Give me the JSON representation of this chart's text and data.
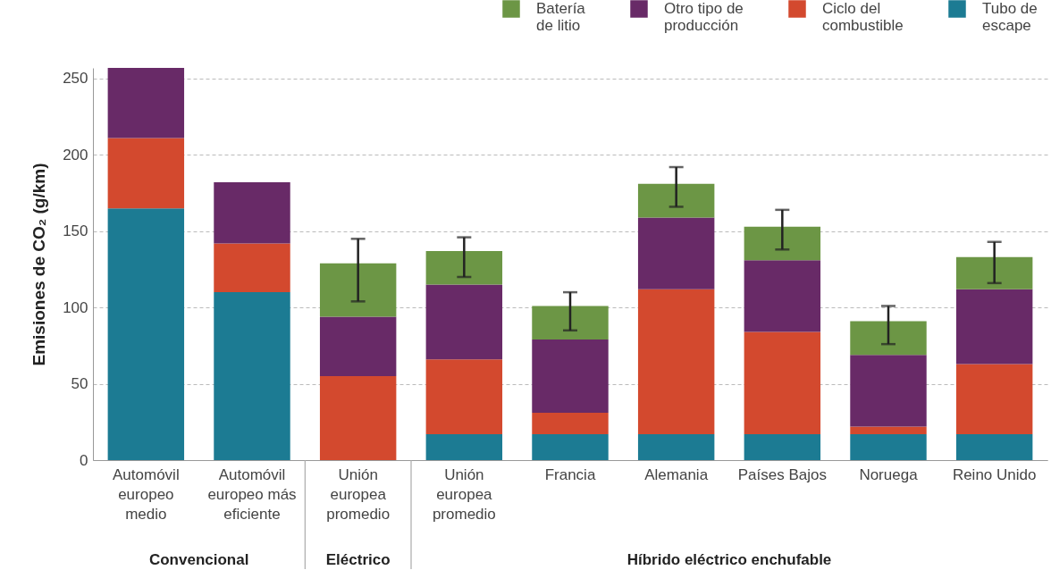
{
  "chart_data": {
    "type": "bar",
    "ylabel": "Emisiones de CO₂ (g/km)",
    "categories": [
      "Automóvil europeo medio",
      "Automóvil europeo más eficiente",
      "Unión europea promedio",
      "Unión europea promedio",
      "Francia",
      "Alemania",
      "Países Bajos",
      "Noruega",
      "Reino Unido"
    ],
    "series": [
      {
        "name": "Tubo de escape",
        "color": "#1c7b93",
        "values": [
          165,
          110,
          0,
          17,
          17,
          17,
          17,
          17,
          17
        ]
      },
      {
        "name": "Ciclo del combustible",
        "color": "#d3492e",
        "values": [
          46,
          32,
          55,
          49,
          14,
          95,
          67,
          5,
          46
        ]
      },
      {
        "name": "Otro tipo de producción",
        "color": "#682a67",
        "values": [
          46,
          40,
          39,
          49,
          48,
          47,
          47,
          47,
          49
        ]
      },
      {
        "name": "Batería de litio",
        "color": "#6c9645",
        "values": [
          null,
          null,
          35,
          22,
          22,
          22,
          22,
          22,
          21
        ],
        "errors": [
          null,
          null,
          [
            104,
            145
          ],
          [
            120,
            146
          ],
          [
            85,
            110
          ],
          [
            166,
            192
          ],
          [
            138,
            164
          ],
          [
            76,
            101
          ],
          [
            116,
            143
          ]
        ]
      }
    ],
    "stacked": true,
    "ylim": [
      0,
      257
    ],
    "yticks": [
      0,
      50,
      100,
      150,
      200,
      250
    ],
    "grid": "y",
    "legend": "top right",
    "annotations": [
      "Convencional",
      "Eléctrico",
      "Híbrido eléctrico enchufable"
    ]
  }
}
